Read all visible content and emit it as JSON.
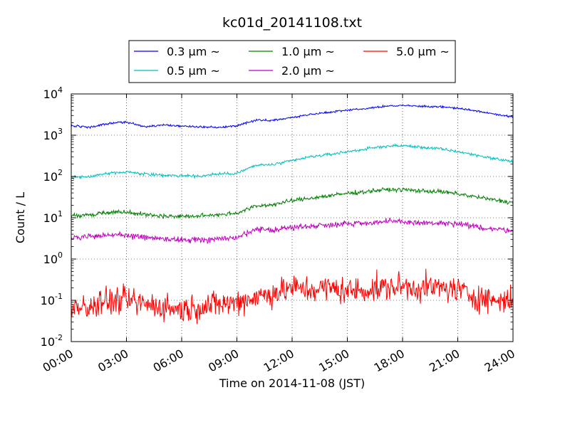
{
  "chart_data": {
    "type": "line",
    "title": "kc01d_20141108.txt",
    "xlabel": "Time on 2014-11-08 (JST)",
    "ylabel": "Count / L",
    "y_scale": "log",
    "xlim_hours": [
      0,
      24
    ],
    "ylim": [
      0.01,
      10000
    ],
    "grid": true,
    "legend_position": "top-center",
    "x_ticks": [
      "00:00",
      "03:00",
      "06:00",
      "09:00",
      "12:00",
      "15:00",
      "18:00",
      "21:00",
      "24:00"
    ],
    "y_ticks": [
      {
        "base": "10",
        "exp": "-2"
      },
      {
        "base": "10",
        "exp": "-1"
      },
      {
        "base": "10",
        "exp": "0"
      },
      {
        "base": "10",
        "exp": "1"
      },
      {
        "base": "10",
        "exp": "2"
      },
      {
        "base": "10",
        "exp": "3"
      },
      {
        "base": "10",
        "exp": "4"
      }
    ],
    "anchor_hours": [
      0,
      1,
      2,
      3,
      4,
      5,
      6,
      7,
      8,
      9,
      10,
      11,
      12,
      13,
      14,
      15,
      16,
      17,
      18,
      19,
      20,
      21,
      22,
      23,
      24
    ],
    "series": [
      {
        "name": "0.3 μm ~",
        "color": "#0000ff",
        "values": [
          1700,
          1550,
          1900,
          2100,
          1600,
          1800,
          1650,
          1600,
          1550,
          1700,
          2300,
          2300,
          2700,
          3200,
          3600,
          4100,
          4400,
          5000,
          5300,
          5000,
          4900,
          4500,
          3900,
          3200,
          2800
        ]
      },
      {
        "name": "0.5 μm ~",
        "color": "#00bfbf",
        "values": [
          95,
          100,
          120,
          130,
          115,
          105,
          105,
          102,
          115,
          120,
          185,
          195,
          240,
          300,
          340,
          400,
          460,
          540,
          560,
          510,
          470,
          400,
          330,
          270,
          230
        ]
      },
      {
        "name": "1.0 μm ~",
        "color": "#008000",
        "values": [
          11,
          12,
          13.5,
          14,
          12,
          11,
          10.8,
          11,
          12,
          13,
          19,
          21,
          26,
          30,
          34,
          39,
          43,
          48,
          48,
          45,
          43,
          38,
          32,
          27,
          23
        ]
      },
      {
        "name": "2.0 μm ~",
        "color": "#bf00bf",
        "values": [
          3.2,
          3.5,
          3.8,
          3.8,
          3.3,
          3.1,
          2.9,
          2.9,
          3.1,
          3.3,
          5,
          5.2,
          5.8,
          6.3,
          6.8,
          7.3,
          7.5,
          8,
          8,
          7.5,
          7.3,
          7,
          6,
          5.3,
          5
        ]
      },
      {
        "name": "5.0 μm ~",
        "color": "#ff0000",
        "values": [
          0.06,
          0.07,
          0.09,
          0.1,
          0.08,
          0.07,
          0.06,
          0.07,
          0.08,
          0.09,
          0.12,
          0.15,
          0.2,
          0.18,
          0.2,
          0.17,
          0.18,
          0.2,
          0.22,
          0.2,
          0.2,
          0.18,
          0.12,
          0.1,
          0.1
        ]
      }
    ]
  }
}
